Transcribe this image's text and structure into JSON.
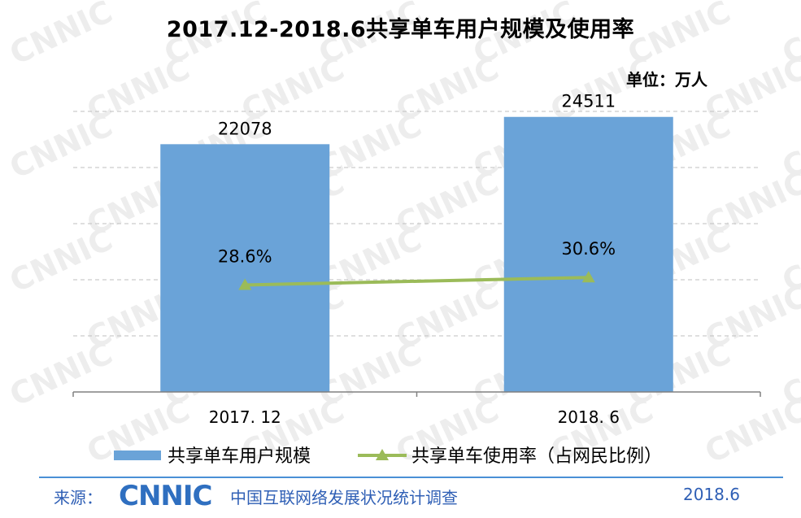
{
  "chart_data": {
    "type": "bar",
    "title": "2017.12-2018.6共享单车用户规模及使用率",
    "unit": "单位：万人",
    "categories": [
      "2017. 12",
      "2018. 6"
    ],
    "series": [
      {
        "name": "共享单车用户规模",
        "kind": "bar",
        "color": "#6aa3d8",
        "values": [
          22078,
          24511
        ],
        "labels": [
          "22078",
          "24511"
        ]
      },
      {
        "name": "共享单车使用率（占网民比例）",
        "kind": "line",
        "marker": "triangle",
        "color": "#9bbb59",
        "values": [
          28.6,
          30.6
        ],
        "labels": [
          "28.6%",
          "30.6%"
        ]
      }
    ],
    "bar_ylim": [
      0,
      25000
    ],
    "line_ylim": [
      0,
      75
    ],
    "grid": true,
    "legend": "bottom"
  },
  "footer": {
    "source_label": "来源：",
    "logo_text": "CNNIC",
    "org": "中国互联网络发展状况统计调查",
    "date": "2018.6"
  },
  "watermark_text": "CNNIC"
}
